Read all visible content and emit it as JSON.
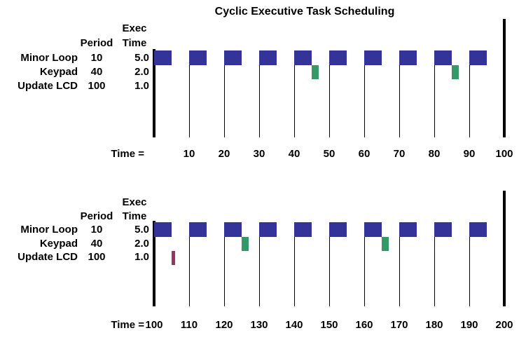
{
  "title": "Cyclic Executive Task Scheduling",
  "colors": {
    "minor_loop": "#333399",
    "keypad": "#339966",
    "update_lcd": "#993366",
    "line": "#000000",
    "background": "#FFFFFF"
  },
  "table": {
    "headers": {
      "period": "Period",
      "exec_line1": "Exec",
      "exec_line2": "Time"
    },
    "tasks": [
      {
        "name": "Minor Loop",
        "period": "10",
        "exec_time": "5.0",
        "color": "#333399"
      },
      {
        "name": "Keypad",
        "period": "40",
        "exec_time": "2.0",
        "color": "#339966"
      },
      {
        "name": "Update LCD",
        "period": "100",
        "exec_time": "1.0",
        "color": "#993366"
      }
    ]
  },
  "chart_data": [
    {
      "type": "gantt",
      "panel": "top",
      "axis_label": "Time =",
      "x_range": [
        0,
        100
      ],
      "tick_interval": 10,
      "tick_labels": [
        10,
        20,
        30,
        40,
        50,
        60,
        70,
        80,
        90,
        100
      ],
      "rows": [
        "Minor Loop",
        "Keypad",
        "Update LCD"
      ],
      "executions": [
        {
          "task": "Minor Loop",
          "start": 0,
          "end": 5
        },
        {
          "task": "Minor Loop",
          "start": 10,
          "end": 15
        },
        {
          "task": "Minor Loop",
          "start": 20,
          "end": 25
        },
        {
          "task": "Minor Loop",
          "start": 30,
          "end": 35
        },
        {
          "task": "Minor Loop",
          "start": 40,
          "end": 45
        },
        {
          "task": "Keypad",
          "start": 45,
          "end": 47
        },
        {
          "task": "Minor Loop",
          "start": 50,
          "end": 55
        },
        {
          "task": "Minor Loop",
          "start": 60,
          "end": 65
        },
        {
          "task": "Minor Loop",
          "start": 70,
          "end": 75
        },
        {
          "task": "Minor Loop",
          "start": 80,
          "end": 85
        },
        {
          "task": "Keypad",
          "start": 85,
          "end": 87
        },
        {
          "task": "Minor Loop",
          "start": 90,
          "end": 95
        }
      ]
    },
    {
      "type": "gantt",
      "panel": "bottom",
      "axis_label": "Time =",
      "x_range": [
        100,
        200
      ],
      "tick_interval": 10,
      "tick_labels": [
        100,
        110,
        120,
        130,
        140,
        150,
        160,
        170,
        180,
        190,
        200
      ],
      "rows": [
        "Minor Loop",
        "Keypad",
        "Update LCD"
      ],
      "executions": [
        {
          "task": "Minor Loop",
          "start": 100,
          "end": 105
        },
        {
          "task": "Update LCD",
          "start": 105,
          "end": 106
        },
        {
          "task": "Minor Loop",
          "start": 110,
          "end": 115
        },
        {
          "task": "Minor Loop",
          "start": 120,
          "end": 125
        },
        {
          "task": "Keypad",
          "start": 125,
          "end": 127
        },
        {
          "task": "Minor Loop",
          "start": 130,
          "end": 135
        },
        {
          "task": "Minor Loop",
          "start": 140,
          "end": 145
        },
        {
          "task": "Minor Loop",
          "start": 150,
          "end": 155
        },
        {
          "task": "Minor Loop",
          "start": 160,
          "end": 165
        },
        {
          "task": "Keypad",
          "start": 165,
          "end": 167
        },
        {
          "task": "Minor Loop",
          "start": 170,
          "end": 175
        },
        {
          "task": "Minor Loop",
          "start": 180,
          "end": 185
        },
        {
          "task": "Minor Loop",
          "start": 190,
          "end": 195
        }
      ]
    }
  ]
}
